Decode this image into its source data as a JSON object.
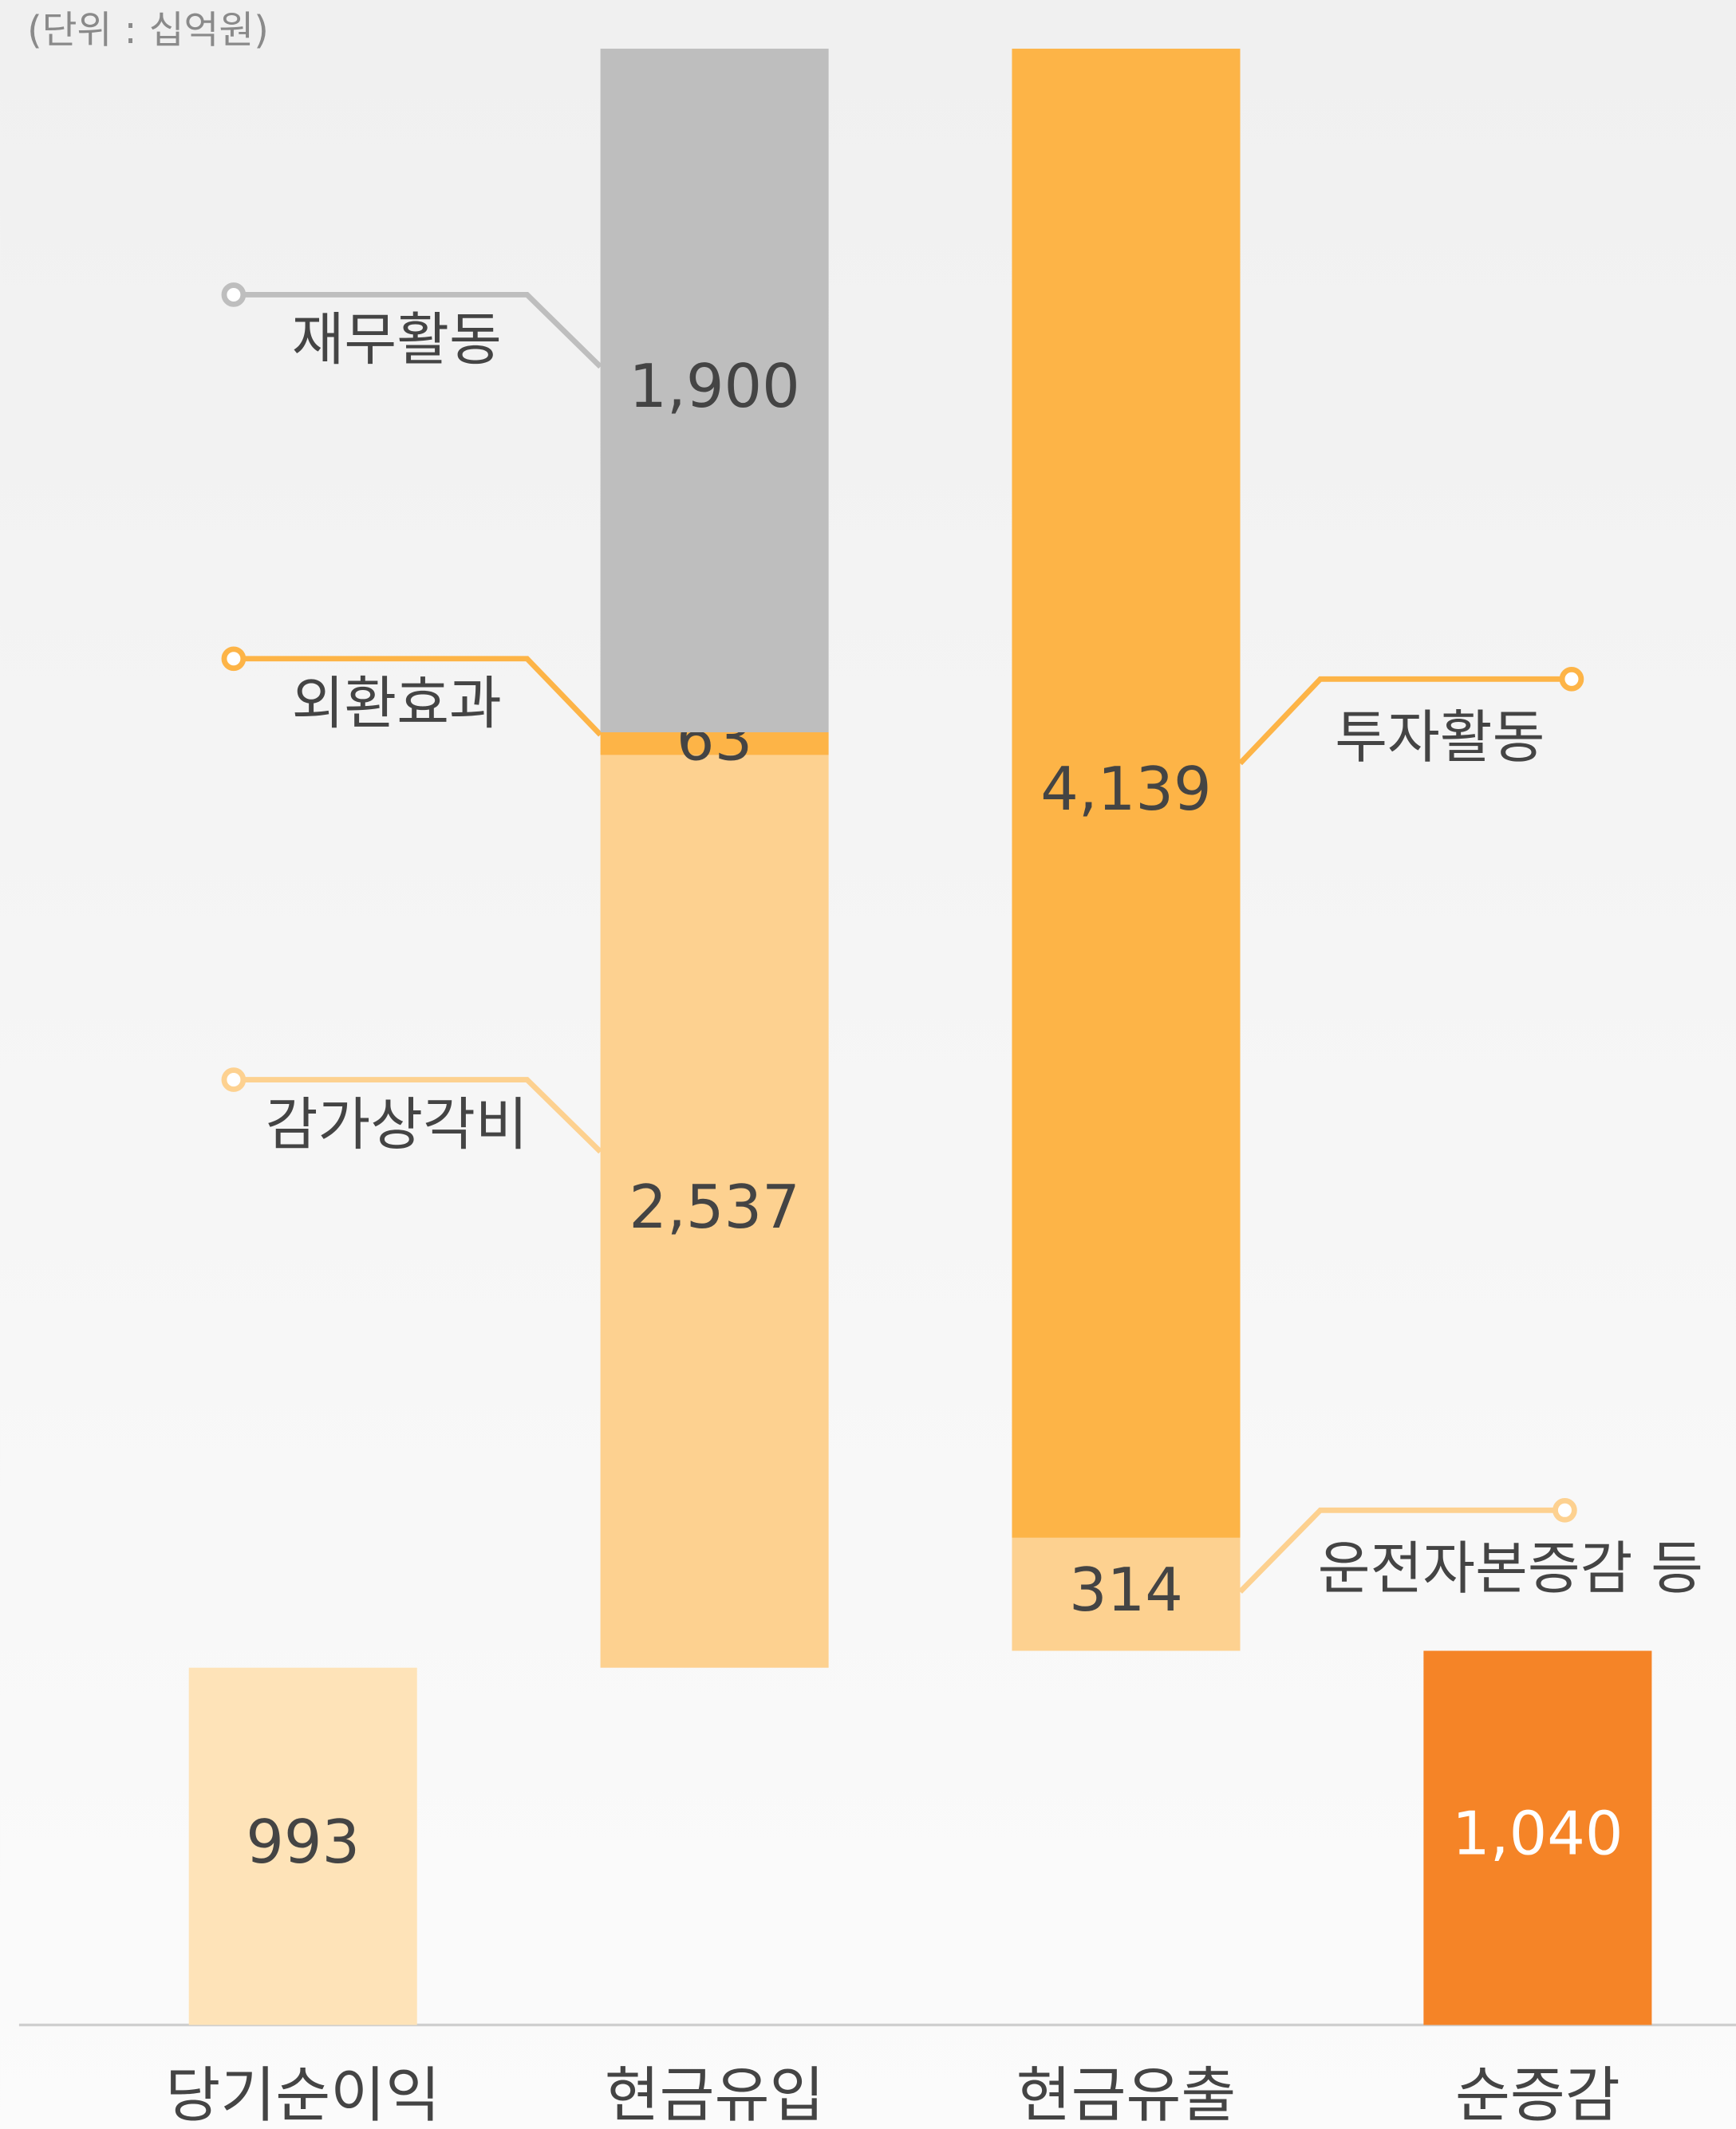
{
  "chart_data": {
    "type": "waterfall",
    "unit_note": "(단위 : 십억원)",
    "ylim": [
      0,
      5500
    ],
    "bars": [
      {
        "category": "당기순이익",
        "segments": [
          {
            "value": 993,
            "value_label": "993",
            "color": "#fee3b8"
          }
        ]
      },
      {
        "category": "현금유입",
        "segments": [
          {
            "name": "감가상각비",
            "value": 2537,
            "value_label": "2,537",
            "color": "#fdd190"
          },
          {
            "name": "외환효과",
            "value": 63,
            "value_label": "63",
            "color": "#fdb447"
          },
          {
            "name": "재무활동",
            "value": 1900,
            "value_label": "1,900",
            "color": "#bebebe"
          }
        ]
      },
      {
        "category": "현금유출",
        "segments": [
          {
            "name": "투자활동",
            "value": 4139,
            "value_label": "4,139",
            "color": "#fdb447"
          },
          {
            "name": "운전자본증감 등",
            "value": 314,
            "value_label": "314",
            "color": "#fdd190"
          }
        ]
      },
      {
        "category": "순증감",
        "segments": [
          {
            "value": 1040,
            "value_label": "1,040",
            "color": "#f58427"
          }
        ]
      }
    ]
  }
}
